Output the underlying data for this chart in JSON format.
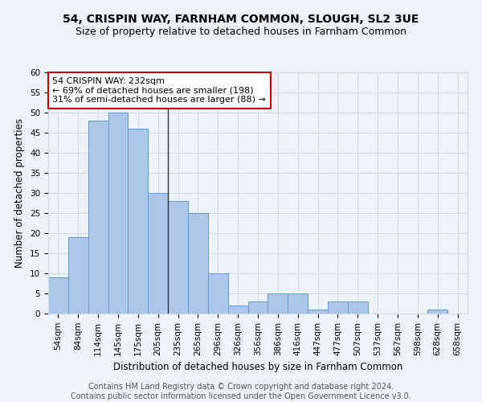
{
  "title1": "54, CRISPIN WAY, FARNHAM COMMON, SLOUGH, SL2 3UE",
  "title2": "Size of property relative to detached houses in Farnham Common",
  "xlabel": "Distribution of detached houses by size in Farnham Common",
  "ylabel": "Number of detached properties",
  "categories": [
    "54sqm",
    "84sqm",
    "114sqm",
    "145sqm",
    "175sqm",
    "205sqm",
    "235sqm",
    "265sqm",
    "296sqm",
    "326sqm",
    "356sqm",
    "386sqm",
    "416sqm",
    "447sqm",
    "477sqm",
    "507sqm",
    "537sqm",
    "567sqm",
    "598sqm",
    "628sqm",
    "658sqm"
  ],
  "values": [
    9,
    19,
    48,
    50,
    46,
    30,
    28,
    25,
    10,
    2,
    3,
    5,
    5,
    1,
    3,
    3,
    0,
    0,
    0,
    1,
    0
  ],
  "bar_color": "#aec6e8",
  "bar_edge_color": "#5b9bd5",
  "highlight_index": 6,
  "annotation_text": "54 CRISPIN WAY: 232sqm\n← 69% of detached houses are smaller (198)\n31% of semi-detached houses are larger (88) →",
  "annotation_box_color": "#ffffff",
  "annotation_box_edge": "#cc0000",
  "ylim": [
    0,
    60
  ],
  "yticks": [
    0,
    5,
    10,
    15,
    20,
    25,
    30,
    35,
    40,
    45,
    50,
    55,
    60
  ],
  "grid_color": "#d0d8e8",
  "background_color": "#eef2fa",
  "footer_text": "Contains HM Land Registry data © Crown copyright and database right 2024.\nContains public sector information licensed under the Open Government Licence v3.0.",
  "title1_fontsize": 10,
  "title2_fontsize": 9,
  "xlabel_fontsize": 8.5,
  "ylabel_fontsize": 8.5,
  "annotation_fontsize": 8,
  "footer_fontsize": 7,
  "tick_fontsize": 7.5
}
